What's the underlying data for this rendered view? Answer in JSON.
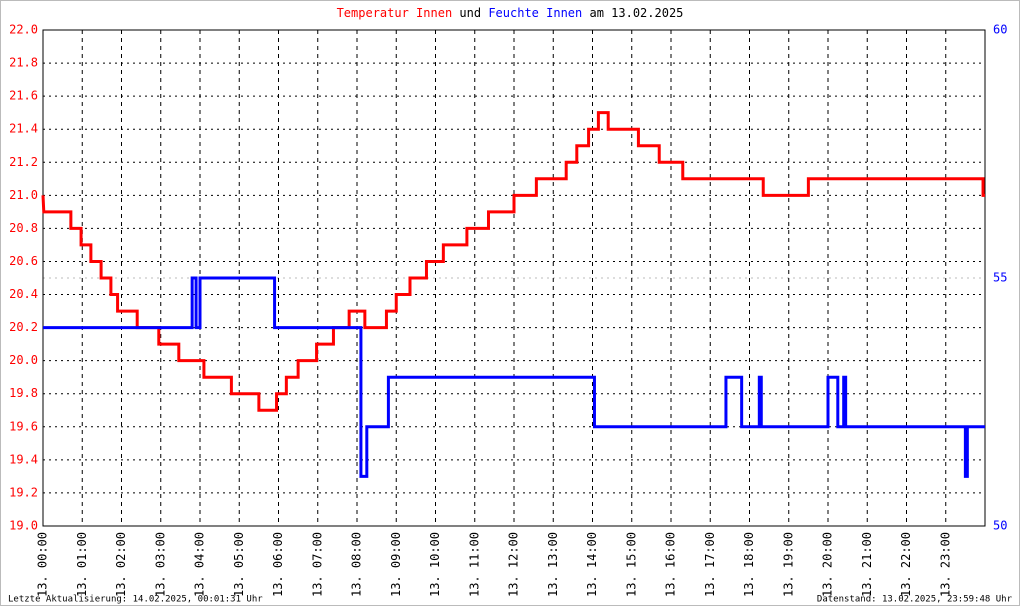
{
  "chart_data": {
    "type": "line",
    "title_parts": [
      {
        "text": "Temperatur Innen",
        "color": "#ff0000"
      },
      {
        "text": "und",
        "color": "#000000"
      },
      {
        "text": "Feuchte Innen",
        "color": "#0000ff"
      },
      {
        "text": "am 13.02.2025",
        "color": "#000000"
      }
    ],
    "footer_left": "Letzte Aktualisierung: 14.02.2025, 00:01:31 Uhr",
    "footer_right": "Datenstand: 13.02.2025, 23:59:48 Uhr",
    "grid": true,
    "xlim": [
      0,
      24
    ],
    "xticks": [
      {
        "value": 0,
        "label": "13. 00:00"
      },
      {
        "value": 1,
        "label": "13. 01:00"
      },
      {
        "value": 2,
        "label": "13. 02:00"
      },
      {
        "value": 3,
        "label": "13. 03:00"
      },
      {
        "value": 4,
        "label": "13. 04:00"
      },
      {
        "value": 5,
        "label": "13. 05:00"
      },
      {
        "value": 6,
        "label": "13. 06:00"
      },
      {
        "value": 7,
        "label": "13. 07:00"
      },
      {
        "value": 8,
        "label": "13. 08:00"
      },
      {
        "value": 9,
        "label": "13. 09:00"
      },
      {
        "value": 10,
        "label": "13. 10:00"
      },
      {
        "value": 11,
        "label": "13. 11:00"
      },
      {
        "value": 12,
        "label": "13. 12:00"
      },
      {
        "value": 13,
        "label": "13. 13:00"
      },
      {
        "value": 14,
        "label": "13. 14:00"
      },
      {
        "value": 15,
        "label": "13. 15:00"
      },
      {
        "value": 16,
        "label": "13. 16:00"
      },
      {
        "value": 17,
        "label": "13. 17:00"
      },
      {
        "value": 18,
        "label": "13. 18:00"
      },
      {
        "value": 19,
        "label": "13. 19:00"
      },
      {
        "value": 20,
        "label": "13. 20:00"
      },
      {
        "value": 21,
        "label": "13. 21:00"
      },
      {
        "value": 22,
        "label": "13. 22:00"
      },
      {
        "value": 23,
        "label": "13. 23:00"
      }
    ],
    "ylim": [
      19.0,
      22.0
    ],
    "yticks": [
      {
        "value": 19.0,
        "label": "19.0"
      },
      19.2,
      19.4,
      19.6,
      19.8,
      {
        "value": 20.0,
        "label": "20.0"
      },
      20.2,
      20.4,
      20.6,
      20.8,
      {
        "value": 21.0,
        "label": "21.0"
      },
      21.2,
      21.4,
      21.6,
      21.8,
      {
        "value": 22.0,
        "label": "22.0"
      }
    ],
    "ytick_color": "#ff0000",
    "y2lim": [
      50,
      60
    ],
    "y2ticks": [
      50,
      55,
      60
    ],
    "y2tick_color": "#0000ff",
    "series": [
      {
        "name": "Temperatur Innen",
        "color": "#ff0000",
        "x": [
          0,
          0.02,
          0.71,
          0.71,
          0.97,
          0.97,
          1.22,
          1.22,
          1.48,
          1.48,
          1.73,
          1.73,
          1.9,
          1.9,
          2.4,
          2.4,
          2.95,
          2.95,
          3.46,
          3.46,
          4.1,
          4.1,
          4.8,
          4.8,
          5.5,
          5.5,
          5.95,
          5.95,
          6.2,
          6.2,
          6.5,
          6.5,
          6.97,
          6.97,
          7.4,
          7.4,
          7.8,
          7.8,
          8.2,
          8.2,
          8.75,
          8.75,
          9.0,
          9.0,
          9.35,
          9.35,
          9.77,
          9.77,
          10.2,
          10.2,
          10.8,
          10.8,
          11.35,
          11.35,
          12.0,
          12.0,
          12.57,
          12.57,
          13.33,
          13.33,
          13.6,
          13.6,
          13.9,
          13.9,
          14.15,
          14.15,
          14.4,
          14.4,
          15.17,
          15.17,
          15.7,
          15.7,
          16.3,
          16.3,
          18.35,
          18.35,
          19.5,
          19.5,
          23.95,
          23.95,
          24
        ],
        "values": [
          21.0,
          20.9,
          20.9,
          20.8,
          20.8,
          20.7,
          20.7,
          20.6,
          20.6,
          20.5,
          20.5,
          20.4,
          20.4,
          20.3,
          20.3,
          20.2,
          20.2,
          20.1,
          20.1,
          20.0,
          20.0,
          19.9,
          19.9,
          19.8,
          19.8,
          19.7,
          19.7,
          19.8,
          19.8,
          19.9,
          19.9,
          20.0,
          20.0,
          20.1,
          20.1,
          20.2,
          20.2,
          20.3,
          20.3,
          20.2,
          20.2,
          20.3,
          20.3,
          20.4,
          20.4,
          20.5,
          20.5,
          20.6,
          20.6,
          20.7,
          20.7,
          20.8,
          20.8,
          20.9,
          20.9,
          21.0,
          21.0,
          21.1,
          21.1,
          21.2,
          21.2,
          21.3,
          21.3,
          21.4,
          21.4,
          21.5,
          21.5,
          21.4,
          21.4,
          21.3,
          21.3,
          21.2,
          21.2,
          21.1,
          21.1,
          21.0,
          21.0,
          21.1,
          21.1,
          21.0,
          21.0
        ]
      },
      {
        "name": "Feuchte Innen",
        "color": "#0000ff",
        "axis": "y2",
        "x": [
          0,
          3.8,
          3.8,
          3.9,
          3.9,
          4.0,
          4.0,
          5.9,
          5.9,
          8.1,
          8.1,
          8.25,
          8.25,
          8.8,
          8.8,
          14.05,
          14.05,
          17.4,
          17.4,
          17.8,
          17.8,
          18.25,
          18.25,
          18.3,
          18.3,
          20.0,
          20.0,
          20.25,
          20.25,
          20.4,
          20.4,
          20.45,
          20.45,
          23.5,
          23.5,
          23.55,
          23.55,
          24
        ],
        "values": [
          54,
          54,
          55,
          55,
          54,
          54,
          55,
          55,
          54,
          54,
          51,
          51,
          52,
          52,
          53,
          53,
          52,
          52,
          53,
          53,
          52,
          52,
          53,
          53,
          52,
          52,
          53,
          53,
          52,
          52,
          53,
          53,
          52,
          52,
          51,
          51,
          52,
          52
        ]
      }
    ]
  }
}
